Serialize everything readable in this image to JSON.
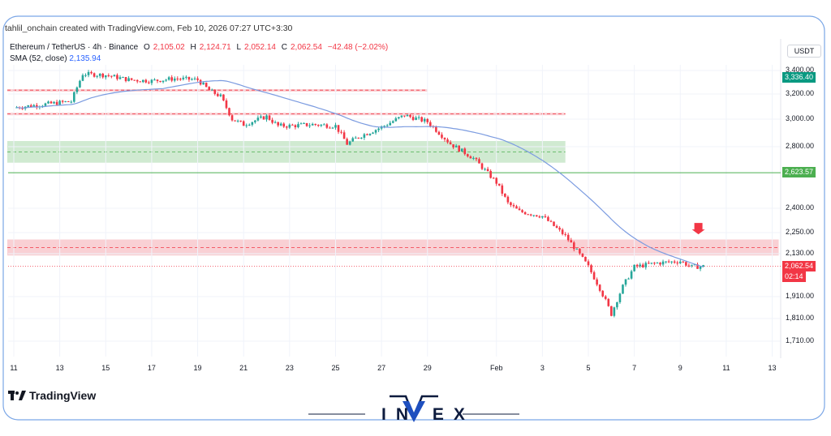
{
  "header": {
    "attribution": "tahlil_onchain created with TradingView.com, Feb 10, 2026 07:27 UTC+3:30",
    "symbol": "Ethereum / TetherUS · 4h · Binance",
    "open_label": "O",
    "open": "2,105.02",
    "high_label": "H",
    "high": "2,124.71",
    "low_label": "L",
    "low": "2,052.14",
    "close_label": "C",
    "close": "2,062.54",
    "change": "−42.48 (−2.02%)",
    "sma_label": "SMA (52, close)",
    "sma_value": "2,135.94"
  },
  "currency_button": "USDT",
  "price_badges": {
    "sma_upper": "3,336.40",
    "level": "2,623.57",
    "last_price": "2,062.54",
    "countdown": "02:14"
  },
  "branding": {
    "tradingview": "TradingView",
    "invex": "IN  EX"
  },
  "colors": {
    "up": "#26a69a",
    "down": "#f23645",
    "sma": "#7b9be0",
    "resistance_zone": "#f8c8cd",
    "support_zone": "#c8e6c9",
    "level_line": "#4caf50"
  },
  "chart_data": {
    "type": "candlestick",
    "x_tick_labels": [
      "11",
      "13",
      "15",
      "17",
      "19",
      "21",
      "23",
      "25",
      "27",
      "29",
      "Feb",
      "3",
      "5",
      "7",
      "9",
      "11",
      "13"
    ],
    "y_tick_labels": [
      "3,400.00",
      "3,200.00",
      "3,000.00",
      "2,800.00",
      "2,400.00",
      "2,250.00",
      "2,130.00",
      "1,910.00",
      "1,810.00",
      "1,710.00"
    ],
    "y_ticks": [
      3400,
      3200,
      3000,
      2800,
      2400,
      2250,
      2130,
      1910,
      1810,
      1710
    ],
    "x_ticks": [
      "Jan 11",
      "Jan 13",
      "Jan 15",
      "Jan 17",
      "Jan 19",
      "Jan 21",
      "Jan 23",
      "Jan 25",
      "Jan 27",
      "Jan 29",
      "Feb 1",
      "Feb 3",
      "Feb 5",
      "Feb 7",
      "Feb 9",
      "Feb 11",
      "Feb 13"
    ],
    "close_path": [
      [
        "Jan 11",
        3090
      ],
      [
        "Jan 12",
        3110
      ],
      [
        "Jan 13",
        3130
      ],
      [
        "Jan 13.5",
        3140
      ],
      [
        "Jan 14",
        3370
      ],
      [
        "Jan 15",
        3360
      ],
      [
        "Jan 16",
        3320
      ],
      [
        "Jan 17",
        3310
      ],
      [
        "Jan 18",
        3330
      ],
      [
        "Jan 19",
        3320
      ],
      [
        "Jan 19.5",
        3230
      ],
      [
        "Jan 20",
        3180
      ],
      [
        "Jan 20.5",
        3000
      ],
      [
        "Jan 21",
        2960
      ],
      [
        "Jan 22",
        3020
      ],
      [
        "Jan 22.5",
        2950
      ],
      [
        "Jan 23",
        2950
      ],
      [
        "Jan 24",
        2960
      ],
      [
        "Jan 25",
        2950
      ],
      [
        "Jan 25.5",
        2820
      ],
      [
        "Jan 26",
        2870
      ],
      [
        "Jan 27",
        2940
      ],
      [
        "Jan 28",
        3030
      ],
      [
        "Jan 29",
        2980
      ],
      [
        "Jan 30",
        2820
      ],
      [
        "Jan 31",
        2720
      ],
      [
        "Feb 1",
        2560
      ],
      [
        "Feb 1.5",
        2430
      ],
      [
        "Feb 2",
        2380
      ],
      [
        "Feb 3",
        2350
      ],
      [
        "Feb 4",
        2230
      ],
      [
        "Feb 5",
        2060
      ],
      [
        "Feb 5.5",
        1950
      ],
      [
        "Feb 6",
        1830
      ],
      [
        "Feb 6.5",
        1960
      ],
      [
        "Feb 7",
        2060
      ],
      [
        "Feb 8",
        2080
      ],
      [
        "Feb 9",
        2090
      ],
      [
        "Feb 9.5",
        2060
      ],
      [
        "Feb 10",
        2062.54
      ]
    ],
    "sma": {
      "name": "SMA (52, close)",
      "last": 2135.94
    },
    "zones": [
      {
        "kind": "resistance",
        "from": 3225,
        "to": 3240,
        "x_from": "Jan 11",
        "x_to": "Jan 29"
      },
      {
        "kind": "resistance",
        "from": 3030,
        "to": 3050,
        "x_from": "Jan 11",
        "x_to": "Feb 4"
      },
      {
        "kind": "support",
        "from": 2690,
        "to": 2840,
        "x_from": "Jan 11",
        "x_to": "Feb 4"
      },
      {
        "kind": "resistance",
        "from": 2120,
        "to": 2210,
        "x_from": "Jan 11",
        "x_to": "Feb 13"
      }
    ],
    "level_line": 2623.57,
    "last_price": 2062.54,
    "grid": true,
    "legend": "top-left"
  }
}
